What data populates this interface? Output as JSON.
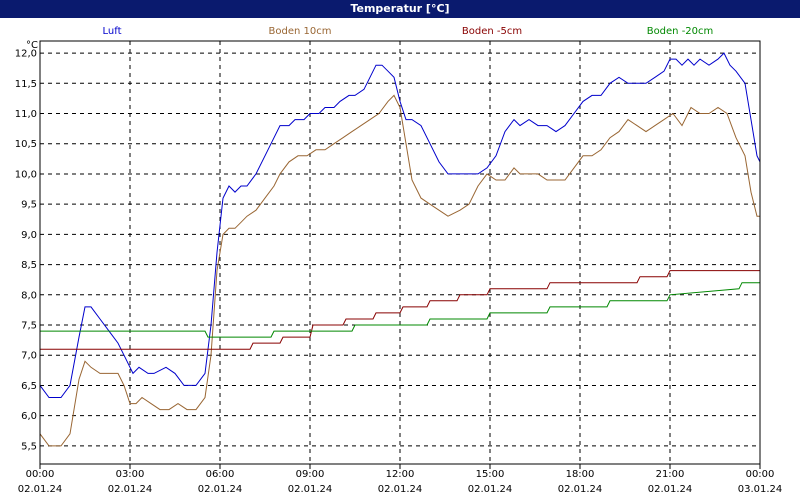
{
  "window": {
    "title": "Temperatur [°C]"
  },
  "chart_data": {
    "type": "line",
    "title": "Temperatur [°C]",
    "ylabel": "°C",
    "xlabel": "",
    "ylim": [
      5.2,
      12.2
    ],
    "xlim": [
      0,
      24
    ],
    "grid": true,
    "y_ticks": [
      "5,5",
      "6,0",
      "6,5",
      "7,0",
      "7,5",
      "8,0",
      "8,5",
      "9,0",
      "9,5",
      "10,0",
      "10,5",
      "11,0",
      "11,5",
      "12,0"
    ],
    "x_ticks": [
      {
        "time": "00:00",
        "date": "02.01.24"
      },
      {
        "time": "03:00",
        "date": "02.01.24"
      },
      {
        "time": "06:00",
        "date": "02.01.24"
      },
      {
        "time": "09:00",
        "date": "02.01.24"
      },
      {
        "time": "12:00",
        "date": "02.01.24"
      },
      {
        "time": "15:00",
        "date": "02.01.24"
      },
      {
        "time": "18:00",
        "date": "02.01.24"
      },
      {
        "time": "21:00",
        "date": "02.01.24"
      },
      {
        "time": "00:00",
        "date": "03.01.24"
      }
    ],
    "series": [
      {
        "name": "Luft",
        "color": "#0000cc",
        "x": [
          0,
          0.3,
          0.7,
          1.0,
          1.3,
          1.5,
          1.7,
          2.0,
          2.3,
          2.6,
          2.8,
          3.0,
          3.1,
          3.3,
          3.6,
          3.8,
          4.2,
          4.5,
          4.8,
          5.2,
          5.5,
          5.7,
          5.9,
          6.1,
          6.3,
          6.5,
          6.7,
          6.9,
          7.2,
          7.5,
          7.8,
          8.0,
          8.3,
          8.5,
          8.8,
          9.0,
          9.3,
          9.5,
          9.8,
          10.0,
          10.3,
          10.5,
          10.8,
          11.0,
          11.2,
          11.4,
          11.6,
          11.8,
          12.0,
          12.2,
          12.4,
          12.7,
          13.0,
          13.3,
          13.6,
          14.0,
          14.3,
          14.6,
          14.9,
          15.2,
          15.5,
          15.8,
          16.0,
          16.3,
          16.6,
          16.9,
          17.2,
          17.5,
          17.8,
          18.1,
          18.4,
          18.7,
          19.0,
          19.3,
          19.6,
          19.9,
          20.2,
          20.5,
          20.8,
          21.0,
          21.2,
          21.4,
          21.6,
          21.8,
          22.0,
          22.3,
          22.6,
          22.8,
          23.0,
          23.2,
          23.5,
          23.7,
          23.9,
          24.0
        ],
        "y": [
          6.5,
          6.3,
          6.3,
          6.5,
          7.3,
          7.8,
          7.8,
          7.6,
          7.4,
          7.2,
          7.0,
          6.8,
          6.7,
          6.8,
          6.7,
          6.7,
          6.8,
          6.7,
          6.5,
          6.5,
          6.7,
          7.5,
          8.7,
          9.6,
          9.8,
          9.7,
          9.8,
          9.8,
          10.0,
          10.3,
          10.6,
          10.8,
          10.8,
          10.9,
          10.9,
          11.0,
          11.0,
          11.1,
          11.1,
          11.2,
          11.3,
          11.3,
          11.4,
          11.6,
          11.8,
          11.8,
          11.7,
          11.6,
          11.2,
          10.9,
          10.9,
          10.8,
          10.5,
          10.2,
          10.0,
          10.0,
          10.0,
          10.0,
          10.1,
          10.3,
          10.7,
          10.9,
          10.8,
          10.9,
          10.8,
          10.8,
          10.7,
          10.8,
          11.0,
          11.2,
          11.3,
          11.3,
          11.5,
          11.6,
          11.5,
          11.5,
          11.5,
          11.6,
          11.7,
          11.9,
          11.9,
          11.8,
          11.9,
          11.8,
          11.9,
          11.8,
          11.9,
          12.0,
          11.8,
          11.7,
          11.5,
          10.9,
          10.3,
          10.2
        ]
      },
      {
        "name": "Boden 10cm",
        "color": "#996633",
        "x": [
          0,
          0.3,
          0.7,
          1.0,
          1.3,
          1.5,
          1.7,
          2.0,
          2.3,
          2.6,
          2.8,
          3.0,
          3.2,
          3.4,
          3.7,
          4.0,
          4.3,
          4.6,
          4.9,
          5.2,
          5.5,
          5.7,
          5.9,
          6.1,
          6.3,
          6.5,
          6.7,
          6.9,
          7.2,
          7.5,
          7.8,
          8.0,
          8.3,
          8.6,
          8.9,
          9.2,
          9.5,
          9.8,
          10.1,
          10.4,
          10.7,
          11.0,
          11.3,
          11.6,
          11.8,
          12.0,
          12.2,
          12.4,
          12.7,
          13.0,
          13.3,
          13.6,
          14.0,
          14.3,
          14.6,
          14.9,
          15.2,
          15.5,
          15.8,
          16.0,
          16.3,
          16.6,
          16.9,
          17.2,
          17.5,
          17.8,
          18.1,
          18.4,
          18.7,
          19.0,
          19.3,
          19.6,
          19.9,
          20.2,
          20.5,
          20.8,
          21.1,
          21.4,
          21.7,
          22.0,
          22.3,
          22.6,
          22.9,
          23.2,
          23.5,
          23.7,
          23.9,
          24.0
        ],
        "y": [
          5.7,
          5.5,
          5.5,
          5.7,
          6.6,
          6.9,
          6.8,
          6.7,
          6.7,
          6.7,
          6.5,
          6.2,
          6.2,
          6.3,
          6.2,
          6.1,
          6.1,
          6.2,
          6.1,
          6.1,
          6.3,
          7.0,
          8.4,
          9.0,
          9.1,
          9.1,
          9.2,
          9.3,
          9.4,
          9.6,
          9.8,
          10.0,
          10.2,
          10.3,
          10.3,
          10.4,
          10.4,
          10.5,
          10.6,
          10.7,
          10.8,
          10.9,
          11.0,
          11.2,
          11.3,
          11.1,
          10.5,
          9.9,
          9.6,
          9.5,
          9.4,
          9.3,
          9.4,
          9.5,
          9.8,
          10.0,
          9.9,
          9.9,
          10.1,
          10.0,
          10.0,
          10.0,
          9.9,
          9.9,
          9.9,
          10.1,
          10.3,
          10.3,
          10.4,
          10.6,
          10.7,
          10.9,
          10.8,
          10.7,
          10.8,
          10.9,
          11.0,
          10.8,
          11.1,
          11.0,
          11.0,
          11.1,
          11.0,
          10.6,
          10.3,
          9.7,
          9.3,
          9.3
        ]
      },
      {
        "name": "Boden -5cm",
        "color": "#880000",
        "x": [
          0,
          7.0,
          7.1,
          8.0,
          8.1,
          9.0,
          9.1,
          10.1,
          10.2,
          11.1,
          11.2,
          12.0,
          12.1,
          12.9,
          13.0,
          13.9,
          14.0,
          14.9,
          15.0,
          16.9,
          17.0,
          19.9,
          20.0,
          20.9,
          21.0,
          22.9,
          23.0,
          24.0
        ],
        "y": [
          7.1,
          7.1,
          7.2,
          7.2,
          7.3,
          7.3,
          7.5,
          7.5,
          7.6,
          7.6,
          7.7,
          7.7,
          7.8,
          7.8,
          7.9,
          7.9,
          8.0,
          8.0,
          8.1,
          8.1,
          8.2,
          8.2,
          8.3,
          8.3,
          8.4,
          8.4,
          8.4,
          8.4
        ]
      },
      {
        "name": "Boden -20cm",
        "color": "#008800",
        "x": [
          0,
          5.5,
          5.6,
          7.7,
          7.8,
          10.4,
          10.5,
          12.9,
          13.0,
          14.9,
          15.0,
          16.9,
          17.0,
          18.9,
          19.0,
          20.9,
          21.0,
          23.3,
          23.4,
          24.0
        ],
        "y": [
          7.4,
          7.4,
          7.3,
          7.3,
          7.4,
          7.4,
          7.5,
          7.5,
          7.6,
          7.6,
          7.7,
          7.7,
          7.8,
          7.8,
          7.9,
          7.9,
          8.0,
          8.1,
          8.2,
          8.2
        ]
      }
    ]
  }
}
